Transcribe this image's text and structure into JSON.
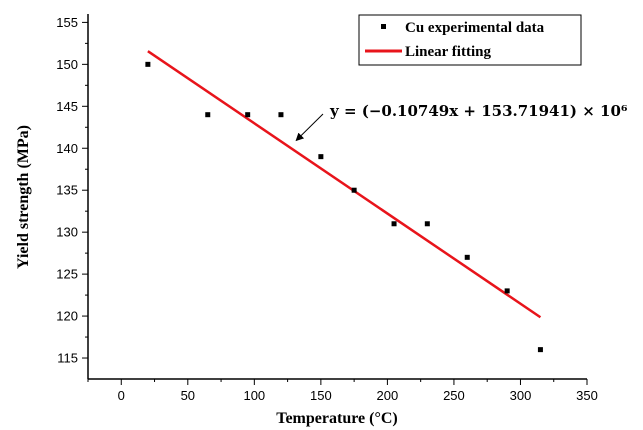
{
  "chart_data": {
    "type": "scatter",
    "xlabel": "Temperature (°C)",
    "ylabel": "Yield strength (MPa)",
    "xlim": [
      -25,
      350
    ],
    "ylim": [
      112.5,
      156
    ],
    "xticks": [
      0,
      50,
      100,
      150,
      200,
      250,
      300,
      350
    ],
    "yticks": [
      115,
      120,
      125,
      130,
      135,
      140,
      145,
      150,
      155
    ],
    "grid": false,
    "legend": "top-right",
    "series": [
      {
        "name": "Cu experimental data",
        "kind": "scatter",
        "marker": "square",
        "color": "#000000",
        "x": [
          20,
          65,
          95,
          120,
          150,
          175,
          205,
          230,
          260,
          290,
          315
        ],
        "y": [
          150,
          144,
          144,
          144,
          139,
          135,
          131,
          131,
          127,
          123,
          116
        ]
      },
      {
        "name": "Linear fitting",
        "kind": "line",
        "color": "#e8141b",
        "x": [
          20,
          315
        ],
        "y": [
          151.57,
          119.86
        ]
      }
    ],
    "annotation": {
      "text": "y = (−0.10749x + 153.71941) × 10⁶",
      "arrow_to": [
        130,
        140.7
      ]
    }
  }
}
